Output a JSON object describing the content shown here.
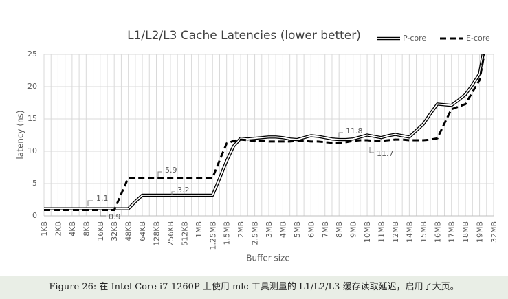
{
  "chart_data": {
    "type": "line",
    "title": "L1/L2/L3 Cache Latencies (lower better)",
    "xlabel": "Buffer size",
    "ylabel": "latency (ns)",
    "categories": [
      "1KB",
      null,
      "2KB",
      null,
      "4KB",
      null,
      "8KB",
      null,
      "16KB",
      null,
      "32KB",
      null,
      "48KB",
      null,
      "64KB",
      null,
      "128KB",
      null,
      "256KB",
      null,
      "512KB",
      null,
      "1MB",
      null,
      "1.25MB",
      null,
      "1.5MB",
      null,
      "2MB",
      null,
      "2.5MB",
      null,
      "3MB",
      null,
      "4MB",
      null,
      "5MB",
      null,
      "6MB",
      null,
      "7MB",
      null,
      "8MB",
      null,
      "9MB",
      null,
      "10MB",
      null,
      "11MB",
      null,
      "12MB",
      null,
      "14MB",
      null,
      "15MB",
      null,
      "16MB",
      null,
      "17MB",
      null,
      "18MB",
      null,
      "19MB",
      null,
      "32MB"
    ],
    "series": [
      {
        "name": "P-core",
        "color": "#000000",
        "style": "double",
        "values": [
          1.1,
          1.1,
          1.1,
          1.1,
          1.1,
          1.1,
          1.1,
          1.1,
          1.1,
          1.1,
          1.1,
          1.1,
          1.1,
          2.2,
          3.2,
          3.2,
          3.2,
          3.2,
          3.2,
          3.2,
          3.2,
          3.2,
          3.2,
          3.2,
          3.2,
          5.8,
          8.5,
          10.8,
          12.0,
          11.9,
          12.0,
          12.1,
          12.2,
          12.2,
          12.1,
          11.9,
          11.8,
          12.1,
          12.4,
          12.3,
          12.1,
          11.9,
          11.8,
          11.8,
          11.9,
          12.2,
          12.5,
          12.3,
          12.1,
          12.4,
          12.6,
          12.4,
          12.2,
          13.2,
          14.2,
          15.8,
          17.3,
          17.2,
          17.1,
          17.9,
          18.8,
          20.3,
          22.0,
          28,
          null
        ]
      },
      {
        "name": "E-core",
        "color": "#000000",
        "style": "dashed",
        "values": [
          0.9,
          0.9,
          0.9,
          0.9,
          0.9,
          0.9,
          0.9,
          0.9,
          0.9,
          0.9,
          0.9,
          3.4,
          5.9,
          5.9,
          5.9,
          5.9,
          5.9,
          5.9,
          5.9,
          5.9,
          5.9,
          5.9,
          5.9,
          5.9,
          5.9,
          8.6,
          11.2,
          11.6,
          11.8,
          11.7,
          11.6,
          11.6,
          11.5,
          11.5,
          11.5,
          11.5,
          11.6,
          11.6,
          11.5,
          11.5,
          11.4,
          11.3,
          11.3,
          11.4,
          11.6,
          11.7,
          11.7,
          11.6,
          11.6,
          11.7,
          11.8,
          11.8,
          11.7,
          11.7,
          11.7,
          11.8,
          12.0,
          14.3,
          16.5,
          16.9,
          17.3,
          19.2,
          21.0,
          27,
          null
        ]
      }
    ],
    "annotations": [
      "1.1",
      "0.9",
      "5.9",
      "3.2",
      "11.8",
      "11.7"
    ],
    "ylim": [
      0,
      25
    ],
    "yticks": [
      0,
      5,
      10,
      15,
      20,
      25
    ],
    "grid": true,
    "legend": "top-right"
  },
  "caption": "Figure 26: 在 Intel Core i7-1260P 上使用 mlc 工具测量的 L1/L2/L3 缓存读取延迟，启用了大页。"
}
